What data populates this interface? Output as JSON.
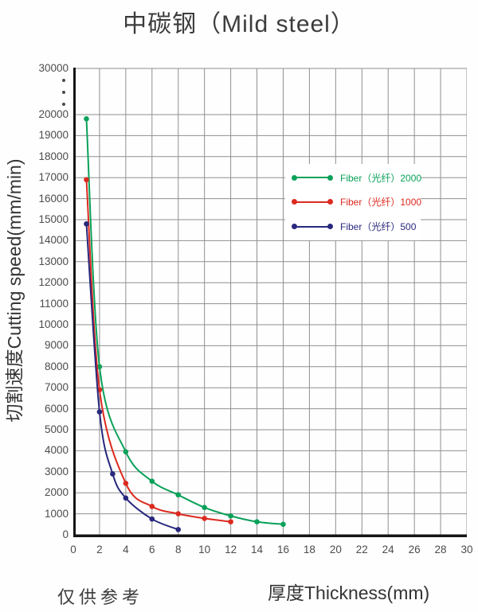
{
  "title": "中碳钢（Mild steel）",
  "footer_note": "仅供参考",
  "colors": {
    "grid": "#8f8f8f",
    "axis": "#151515",
    "tick_text": "#4c4c4c",
    "title_text": "#3c3c3c"
  },
  "chart_data": {
    "type": "line",
    "title": "中碳钢（Mild steel）",
    "xlabel": "厚度Thickness(mm)",
    "ylabel": "切割速度Cutting speed(mm/min)",
    "xlim": [
      0,
      30
    ],
    "x_ticks": [
      0,
      2,
      4,
      6,
      8,
      10,
      12,
      14,
      16,
      18,
      20,
      22,
      24,
      26,
      28,
      30
    ],
    "y_ticks_linear": [
      0,
      1000,
      2000,
      3000,
      4000,
      5000,
      6000,
      7000,
      8000,
      9000,
      10000,
      11000,
      12000,
      13000,
      14000,
      15000,
      16000,
      17000,
      18000,
      19000,
      20000
    ],
    "y_top_tick": 30000,
    "y_axis_break": true,
    "grid": true,
    "legend_position": "inside-upper-right",
    "series": [
      {
        "name": "Fiber（光纤）2000",
        "color": "#0aa159",
        "points": [
          [
            1,
            19800
          ],
          [
            2,
            8000
          ],
          [
            4,
            3950
          ],
          [
            6,
            2550
          ],
          [
            8,
            1900
          ],
          [
            10,
            1300
          ],
          [
            12,
            900
          ],
          [
            14,
            620
          ],
          [
            16,
            500
          ]
        ]
      },
      {
        "name": "Fiber（光纤）1000",
        "color": "#dc2a1f",
        "points": [
          [
            1,
            16900
          ],
          [
            2,
            6900
          ],
          [
            4,
            2450
          ],
          [
            6,
            1350
          ],
          [
            8,
            1000
          ],
          [
            10,
            780
          ],
          [
            12,
            620
          ]
        ]
      },
      {
        "name": "Fiber（光纤）500",
        "color": "#28287d",
        "points": [
          [
            1,
            14800
          ],
          [
            2,
            5850
          ],
          [
            3,
            2900
          ],
          [
            4,
            1750
          ],
          [
            6,
            750
          ],
          [
            8,
            250
          ]
        ]
      }
    ]
  }
}
